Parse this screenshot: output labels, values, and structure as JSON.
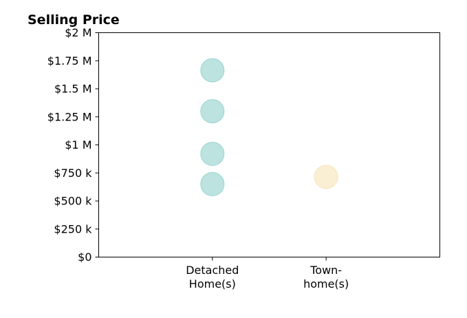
{
  "chart_data": {
    "type": "scatter",
    "title": "Selling Price",
    "xlabel": "",
    "ylabel": "",
    "categories": [
      [
        "Detached",
        "Home(s)"
      ],
      [
        "Town-",
        "home(s)"
      ]
    ],
    "x_range": [
      -1,
      2
    ],
    "ylim": [
      0,
      2000000
    ],
    "y_ticks": [
      {
        "value": 0,
        "label": "$0"
      },
      {
        "value": 250000,
        "label": "$250 k"
      },
      {
        "value": 500000,
        "label": "$500 k"
      },
      {
        "value": 750000,
        "label": "$750 k"
      },
      {
        "value": 1000000,
        "label": "$1 M"
      },
      {
        "value": 1250000,
        "label": "$1.25 M"
      },
      {
        "value": 1500000,
        "label": "$1.5 M"
      },
      {
        "value": 1750000,
        "label": "$1.75 M"
      },
      {
        "value": 2000000,
        "label": "$2 M"
      }
    ],
    "grid": false,
    "series": [
      {
        "category_index": 0,
        "color": "#8fd1cb",
        "values": [
          1665000,
          1300000,
          920000,
          650000
        ]
      },
      {
        "category_index": 1,
        "color": "#f6e2b6",
        "values": [
          715000
        ]
      }
    ]
  }
}
